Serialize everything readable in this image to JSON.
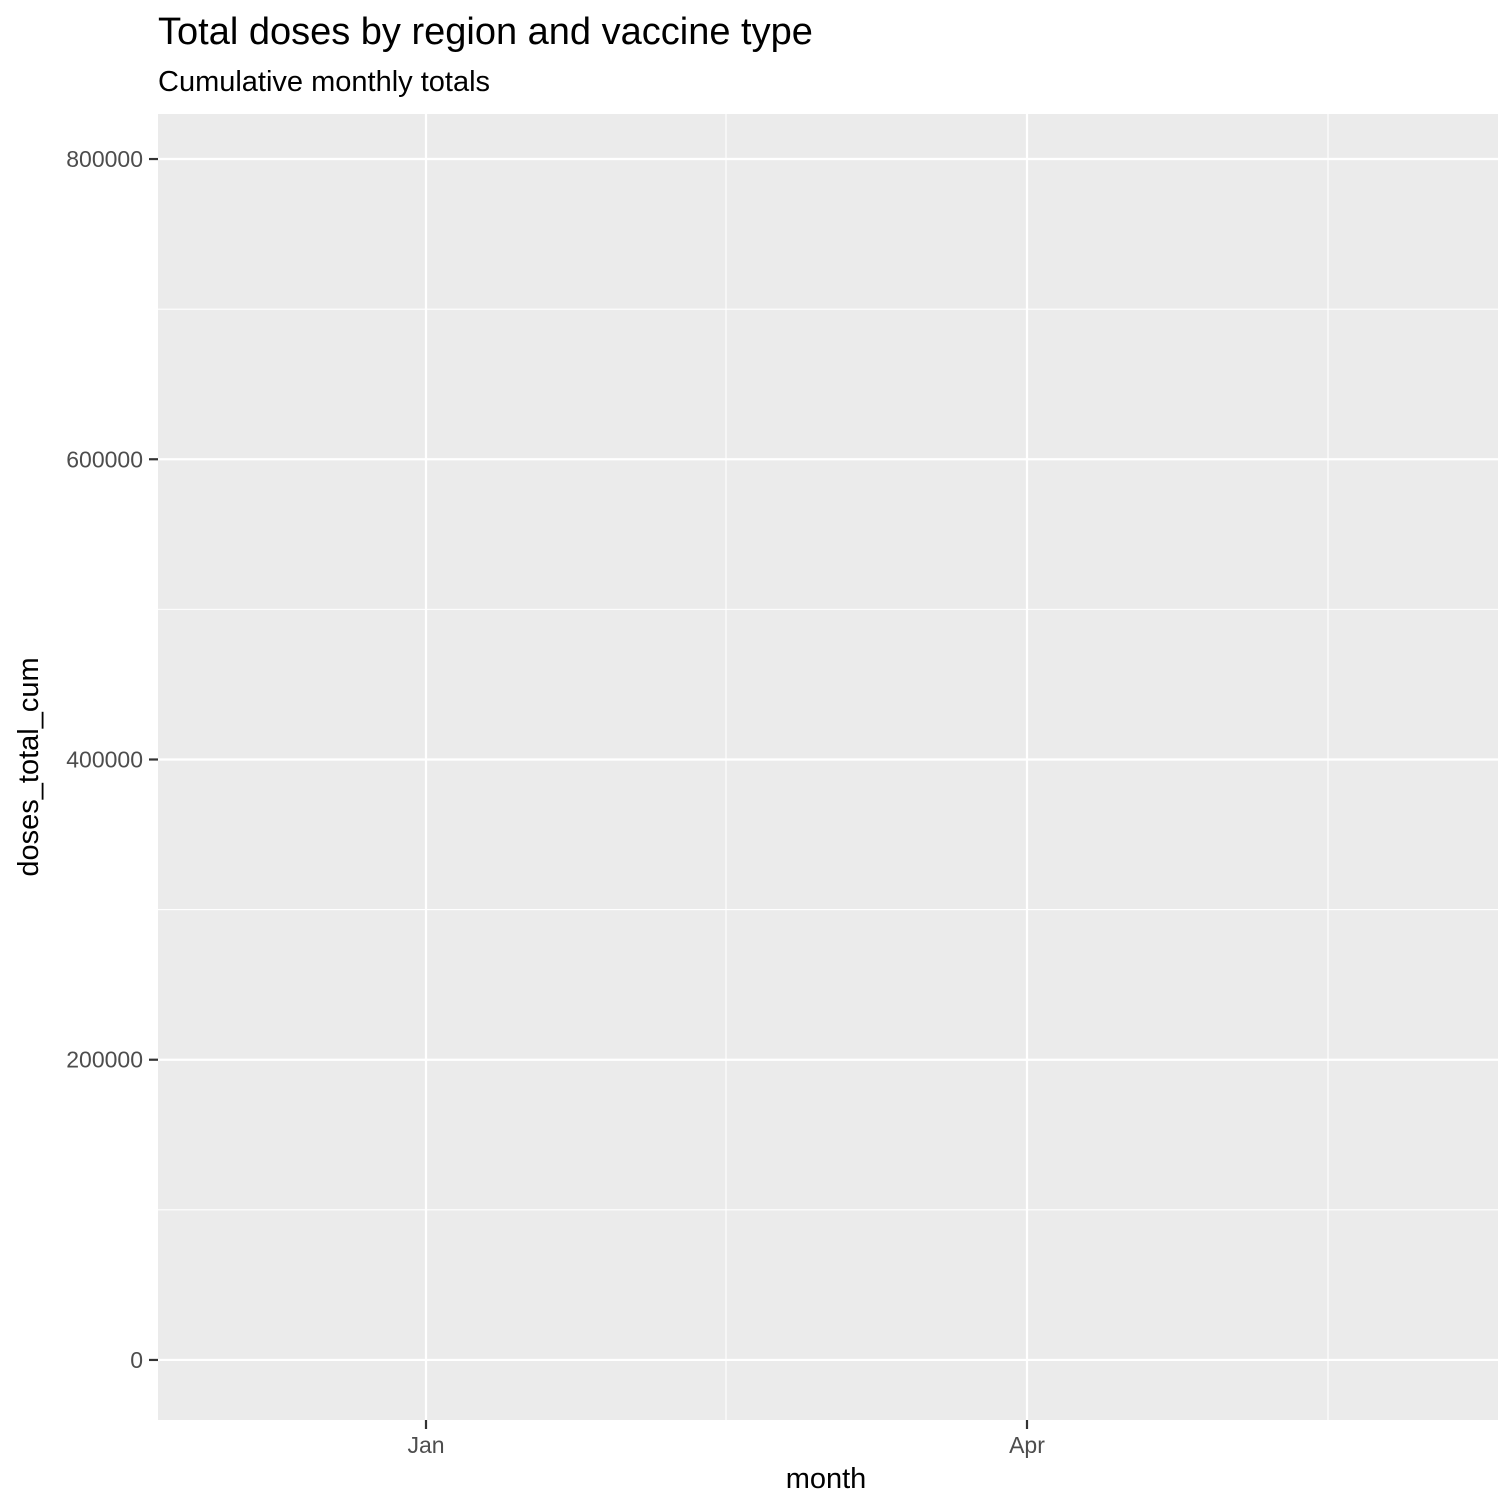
{
  "chart_data": {
    "type": "line",
    "title": "Total doses by region and vaccine type",
    "subtitle": "Cumulative monthly totals",
    "xlabel": "month",
    "ylabel": "doses_total_cum",
    "x_ticks": [
      "Jan",
      "Apr"
    ],
    "y_ticks": [
      0,
      200000,
      400000,
      600000,
      800000
    ],
    "y_tick_labels": [
      "0",
      "200000",
      "400000",
      "600000",
      "800000"
    ],
    "ylim": [
      -40000,
      830000
    ],
    "series": [],
    "grid": true,
    "legend": "none",
    "colors": {
      "panel_background": "#ebebeb",
      "grid_major": "#ffffff",
      "tick_text": "#4d4d4d",
      "tick_mark": "#333333"
    }
  }
}
